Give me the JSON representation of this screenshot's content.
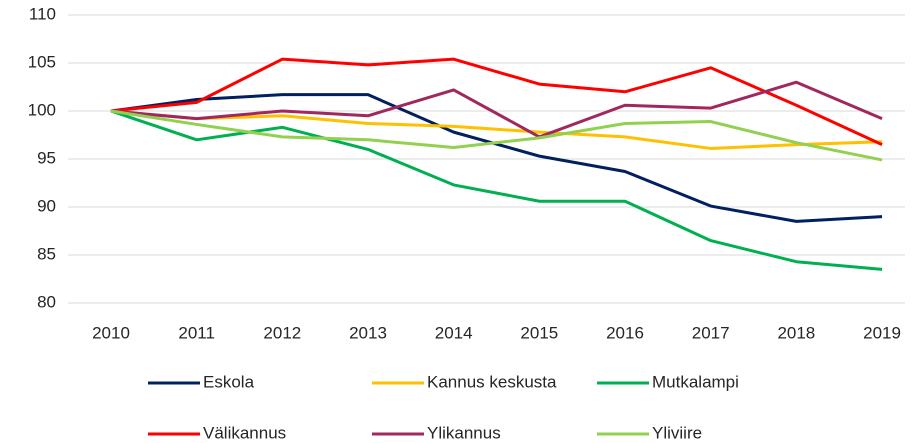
{
  "chart_data": {
    "type": "line",
    "categories": [
      "2010",
      "2011",
      "2012",
      "2013",
      "2014",
      "2015",
      "2016",
      "2017",
      "2018",
      "2019"
    ],
    "series": [
      {
        "name": "Eskola",
        "color": "#002060",
        "values": [
          100,
          101.2,
          101.7,
          101.7,
          97.8,
          95.3,
          93.7,
          90.1,
          88.5,
          89.0
        ]
      },
      {
        "name": "Kannus keskusta",
        "color": "#ffc000",
        "values": [
          100,
          99.2,
          99.5,
          98.7,
          98.4,
          97.8,
          97.3,
          96.1,
          96.5,
          96.8
        ]
      },
      {
        "name": "Mutkalampi",
        "color": "#00b050",
        "values": [
          100,
          97.0,
          98.3,
          96.0,
          92.3,
          90.6,
          90.6,
          86.5,
          84.3,
          83.5
        ]
      },
      {
        "name": "Välikannus",
        "color": "#ff0000",
        "values": [
          100,
          100.9,
          105.4,
          104.8,
          105.4,
          102.8,
          102.0,
          104.5,
          100.6,
          96.5
        ]
      },
      {
        "name": "Ylikannus",
        "color": "#a0285f",
        "values": [
          100,
          99.2,
          100.0,
          99.5,
          102.2,
          97.3,
          100.6,
          100.3,
          103.0,
          99.2
        ]
      },
      {
        "name": "Yliviire",
        "color": "#92d050",
        "values": [
          100,
          98.6,
          97.3,
          97.0,
          96.2,
          97.2,
          98.7,
          98.9,
          96.7,
          94.9
        ]
      }
    ],
    "ylim": [
      80,
      110
    ],
    "yticks": [
      80,
      85,
      90,
      95,
      100,
      105,
      110
    ],
    "grid": true,
    "legend": "bottom"
  }
}
